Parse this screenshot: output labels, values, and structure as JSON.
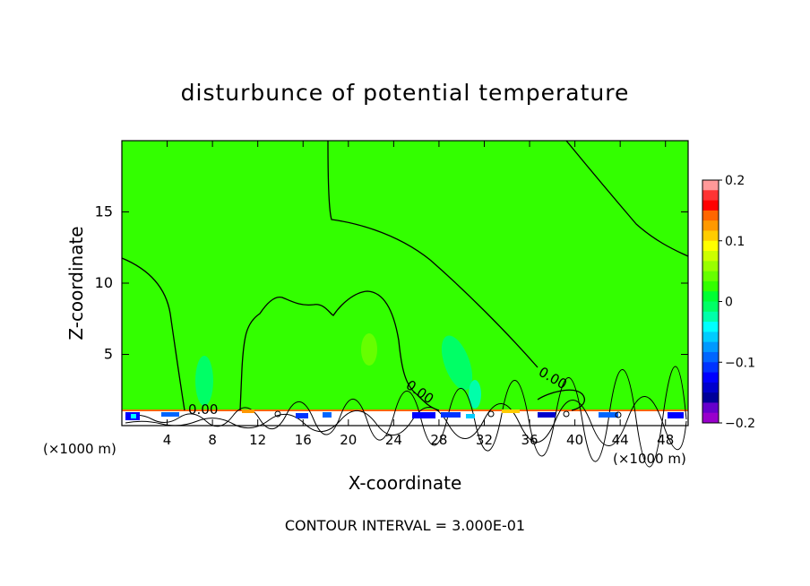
{
  "chart_data": {
    "type": "heatmap",
    "title": "disturbunce of potential temperature",
    "xlabel": "X-coordinate",
    "ylabel": "Z-coordinate",
    "x_unit_left": "(×1000 m)",
    "x_unit_right": "(×1000 m)",
    "xlim": [
      0,
      50
    ],
    "ylim": [
      0,
      20
    ],
    "x_ticks": [
      "4",
      "8",
      "12",
      "16",
      "20",
      "24",
      "28",
      "32",
      "36",
      "40",
      "44",
      "48"
    ],
    "y_ticks": [
      "5",
      "10",
      "15"
    ],
    "colorbar": {
      "range": [
        -0.2,
        0.2
      ],
      "tick_labels": [
        "0.2",
        "0.1",
        "0",
        "−0.1",
        "−0.2"
      ],
      "colors": [
        "#ff9999",
        "#ff3333",
        "#ff0000",
        "#ff6600",
        "#ff9900",
        "#ffcc00",
        "#ffff00",
        "#ccff00",
        "#99ff00",
        "#66ff00",
        "#33ff00",
        "#00ff33",
        "#00ff66",
        "#00ffaa",
        "#00ffff",
        "#00ccff",
        "#0099ff",
        "#0066ff",
        "#0033ff",
        "#0000ff",
        "#0000cc",
        "#000099",
        "#6600cc",
        "#9900cc"
      ]
    },
    "contour_labels": [
      "0.00",
      "0.00",
      "0.00",
      "0.00"
    ],
    "footnote": "CONTOUR INTERVAL = 3.000E-01"
  }
}
